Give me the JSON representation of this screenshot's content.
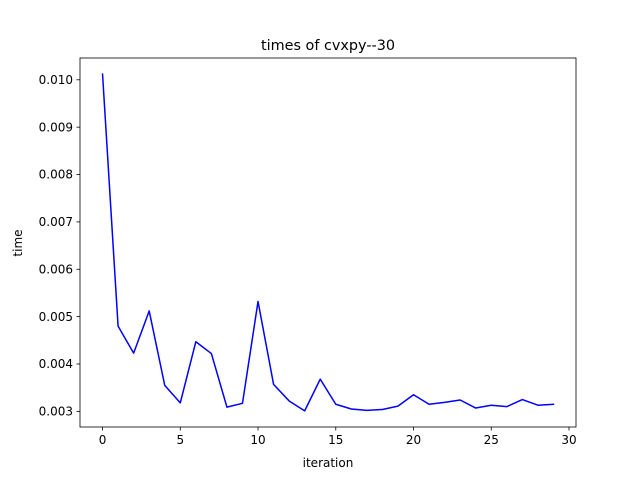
{
  "chart_data": {
    "type": "line",
    "title": "times of cvxpy--30",
    "xlabel": "iteration",
    "ylabel": "time",
    "xlim": [
      -1.45,
      30.45
    ],
    "ylim": [
      0.00267,
      0.01046
    ],
    "xticks": [
      0,
      5,
      10,
      15,
      20,
      25,
      30
    ],
    "xtick_labels": [
      "0",
      "5",
      "10",
      "15",
      "20",
      "25",
      "30"
    ],
    "yticks": [
      0.003,
      0.004,
      0.005,
      0.006,
      0.007,
      0.008,
      0.009,
      0.01
    ],
    "ytick_labels": [
      "0.003",
      "0.004",
      "0.005",
      "0.006",
      "0.007",
      "0.008",
      "0.009",
      "0.010"
    ],
    "grid": false,
    "legend": "none",
    "series": [
      {
        "color": "#0000ff",
        "x": [
          0,
          1,
          2,
          3,
          4,
          5,
          6,
          7,
          8,
          9,
          10,
          11,
          12,
          13,
          14,
          15,
          16,
          17,
          18,
          19,
          20,
          21,
          22,
          23,
          24,
          25,
          26,
          27,
          28,
          29
        ],
        "y": [
          0.01012,
          0.0048,
          0.00423,
          0.00512,
          0.00355,
          0.00318,
          0.00447,
          0.00422,
          0.00309,
          0.00317,
          0.00532,
          0.00357,
          0.00322,
          0.00301,
          0.00368,
          0.00315,
          0.00305,
          0.00302,
          0.00304,
          0.00311,
          0.00335,
          0.00315,
          0.00319,
          0.00324,
          0.00307,
          0.00313,
          0.0031,
          0.00325,
          0.00313,
          0.00315
        ]
      }
    ]
  }
}
